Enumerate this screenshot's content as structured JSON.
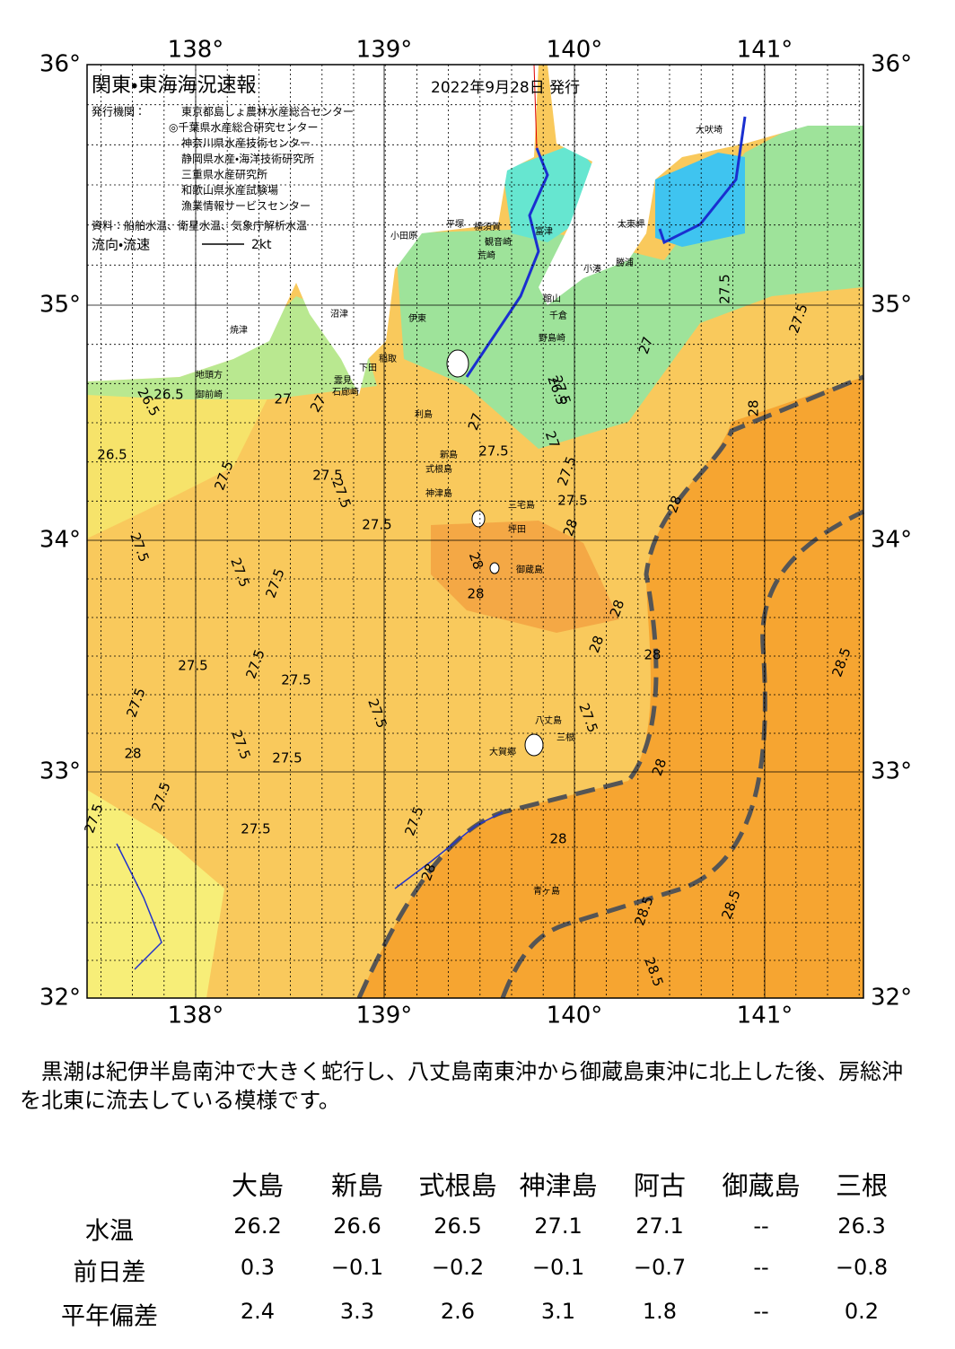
{
  "map": {
    "title": "関東・東海海況速報",
    "issued": "2022年9月28日 発行",
    "publisher_label": "発行機関：",
    "publishers": [
      "東京都島しょ農林水産総合センター",
      "◎千葉県水産総合研究センター",
      "神奈川県水産技術センター",
      "静岡県水産・海洋技術研究所",
      "三重県水産研究所",
      "和歌山県水産試験場",
      "漁業情報サービスセンター"
    ],
    "source": "資料：船舶水温、衛星水温、気象庁解析水温",
    "legend_label": "流向・流速",
    "legend_scale": "2kt",
    "lon_labels": [
      "138°",
      "139°",
      "140°",
      "141°"
    ],
    "lat_labels": [
      "36°",
      "35°",
      "34°",
      "33°",
      "32°"
    ],
    "places": [
      "大吠埼",
      "太東岬",
      "勝浦",
      "小湊",
      "富津",
      "館山",
      "千倉",
      "野島崎",
      "横須賀",
      "観音崎",
      "荒崎",
      "平塚",
      "小田原",
      "伊東",
      "稲取",
      "下田",
      "雲見",
      "石廊崎",
      "沼津",
      "焼津",
      "地頭方",
      "御前崎",
      "利島",
      "新島",
      "式根島",
      "神津島",
      "三宅島",
      "坪田",
      "御蔵島",
      "八丈島",
      "三根",
      "大賀郷",
      "青ヶ島"
    ],
    "contour_labels": [
      "26.5",
      "26.5",
      "26.5",
      "27",
      "27",
      "27.5",
      "27.5",
      "27.5",
      "27.5",
      "27.5",
      "27.5",
      "27.5",
      "27.5",
      "27.5",
      "27.5",
      "27.5",
      "27.5",
      "27.5",
      "27.5",
      "27.5",
      "27.5",
      "27.5",
      "27.5",
      "27.5",
      "27.5",
      "27.5",
      "27.5",
      "27.5",
      "28",
      "28",
      "28",
      "28",
      "28",
      "28",
      "28",
      "28",
      "28",
      "28.5",
      "28.5",
      "28.5",
      "28.5",
      "26.5",
      "27",
      "27",
      "27",
      "28",
      "28",
      "28",
      "27.5",
      "27.5"
    ]
  },
  "description": "　黒潮は紀伊半島南沖で大きく蛇行し、八丈島南東沖から御蔵島東沖に北上した後、房総沖を北東に流去している模様です。",
  "table": {
    "columns": [
      "大島",
      "新島",
      "式根島",
      "神津島",
      "阿古",
      "御蔵島",
      "三根"
    ],
    "rows": [
      {
        "label": "水温",
        "values": [
          "26.2",
          "26.6",
          "26.5",
          "27.1",
          "27.1",
          "--",
          "26.3"
        ]
      },
      {
        "label": "前日差",
        "values": [
          "0.3",
          "−0.1",
          "−0.2",
          "−0.1",
          "−0.7",
          "--",
          "−0.8"
        ]
      },
      {
        "label": "平年偏差",
        "values": [
          "2.4",
          "3.3",
          "2.6",
          "3.1",
          "1.8",
          "--",
          "0.2"
        ]
      }
    ]
  }
}
